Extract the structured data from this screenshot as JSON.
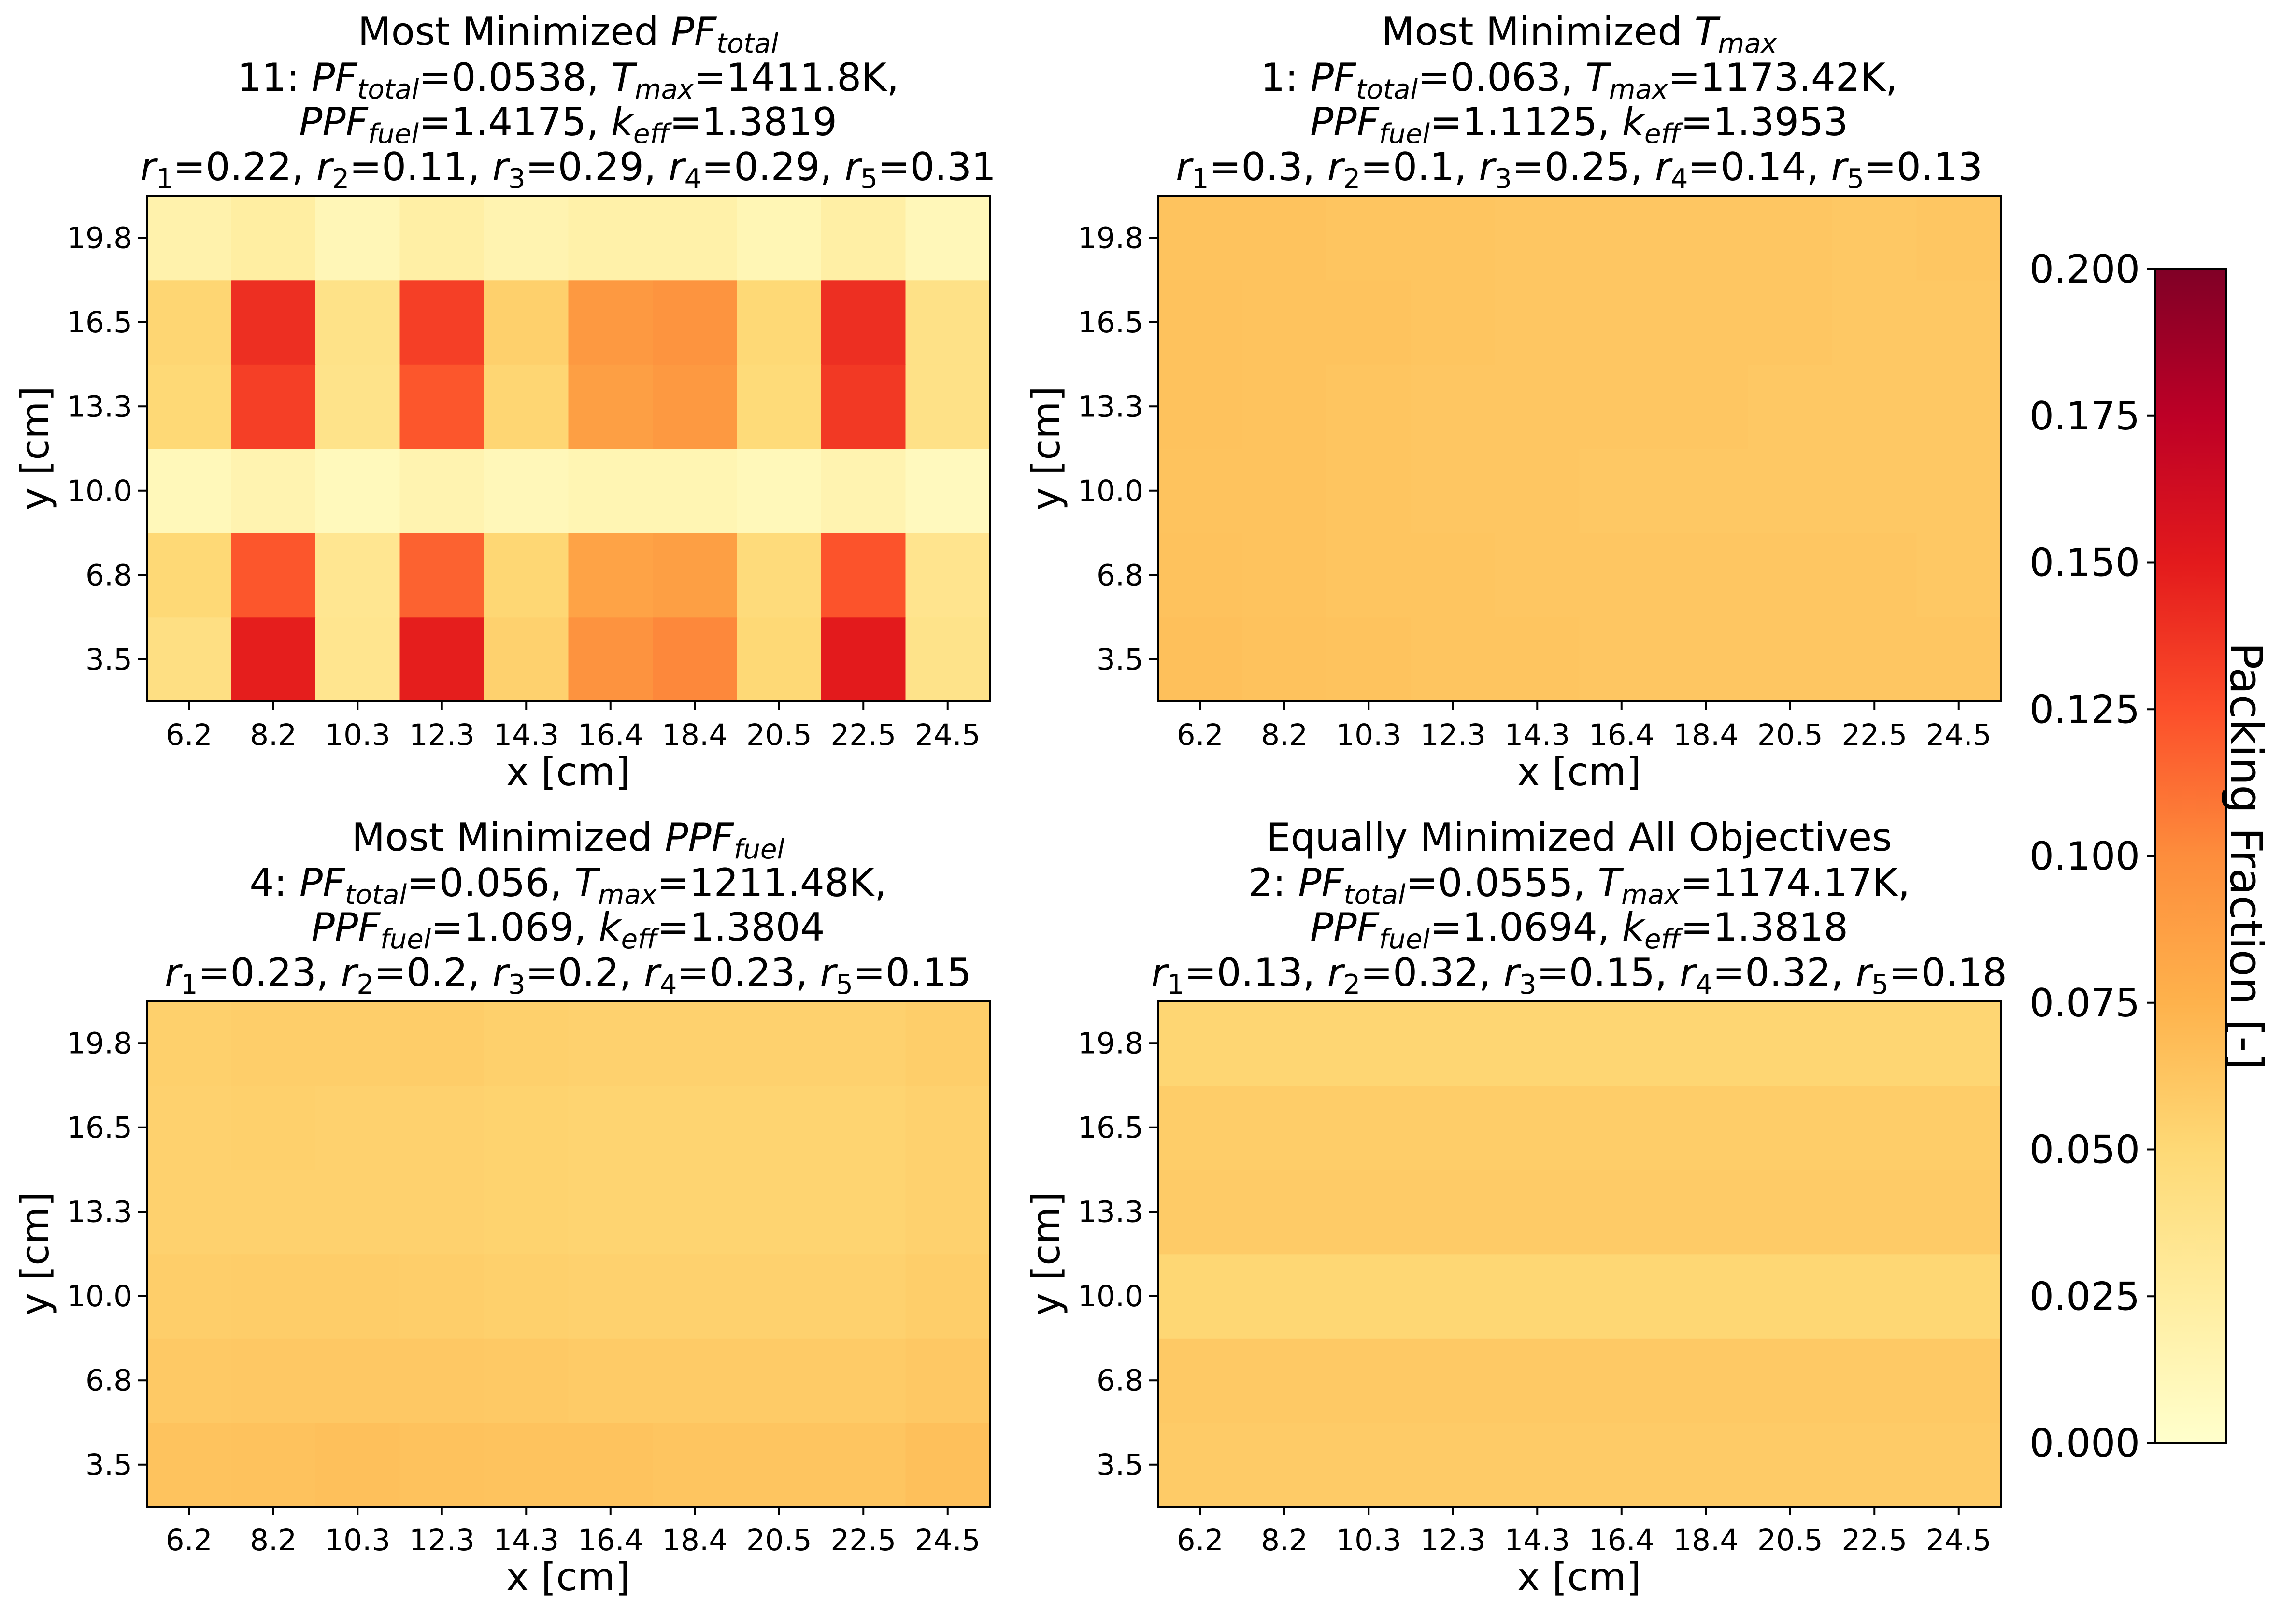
{
  "chart_data": [
    {
      "type": "heatmap",
      "title": "Most Minimized PF_total",
      "info_lines": [
        "11: PF_total=0.0538, T_max=1411.8K,",
        "PPF_fuel=1.4175, k_eff=1.3819",
        "r1=0.22, r2=0.11, r3=0.29, r4=0.29, r5=0.31"
      ],
      "xlabel": "x [cm]",
      "ylabel": "y [cm]",
      "x": [
        "6.2",
        "8.2",
        "10.3",
        "12.3",
        "14.3",
        "16.4",
        "18.4",
        "20.5",
        "22.5",
        "24.5"
      ],
      "y": [
        "3.5",
        "6.8",
        "10.0",
        "13.3",
        "16.5",
        "19.8"
      ],
      "values": [
        [
          0.042,
          0.148,
          0.035,
          0.148,
          0.055,
          0.096,
          0.102,
          0.05,
          0.15,
          0.038
        ],
        [
          0.05,
          0.122,
          0.034,
          0.117,
          0.051,
          0.085,
          0.088,
          0.047,
          0.123,
          0.036
        ],
        [
          0.01,
          0.016,
          0.009,
          0.016,
          0.011,
          0.014,
          0.014,
          0.01,
          0.016,
          0.008
        ],
        [
          0.05,
          0.132,
          0.038,
          0.122,
          0.052,
          0.088,
          0.092,
          0.048,
          0.135,
          0.04
        ],
        [
          0.052,
          0.14,
          0.039,
          0.132,
          0.056,
          0.092,
          0.095,
          0.05,
          0.14,
          0.04
        ],
        [
          0.018,
          0.024,
          0.012,
          0.022,
          0.016,
          0.02,
          0.02,
          0.013,
          0.022,
          0.011
        ]
      ]
    },
    {
      "type": "heatmap",
      "title": "Most Minimized T_max",
      "info_lines": [
        "1: PF_total=0.063, T_max=1173.42K,",
        "PPF_fuel=1.1125, k_eff=1.3953",
        "r1=0.3, r2=0.1, r3=0.25, r4=0.14, r5=0.13"
      ],
      "xlabel": "x [cm]",
      "ylabel": "y [cm]",
      "x": [
        "6.2",
        "8.2",
        "10.3",
        "12.3",
        "14.3",
        "16.4",
        "18.4",
        "20.5",
        "22.5",
        "24.5"
      ],
      "y": [
        "3.5",
        "6.8",
        "10.0",
        "13.3",
        "16.5",
        "19.8"
      ],
      "values": [
        [
          0.066,
          0.065,
          0.064,
          0.063,
          0.063,
          0.062,
          0.062,
          0.062,
          0.062,
          0.062
        ],
        [
          0.065,
          0.064,
          0.063,
          0.063,
          0.062,
          0.062,
          0.062,
          0.062,
          0.062,
          0.061
        ],
        [
          0.064,
          0.064,
          0.063,
          0.062,
          0.062,
          0.061,
          0.061,
          0.061,
          0.061,
          0.061
        ],
        [
          0.065,
          0.064,
          0.063,
          0.062,
          0.062,
          0.062,
          0.062,
          0.061,
          0.061,
          0.061
        ],
        [
          0.065,
          0.064,
          0.064,
          0.063,
          0.062,
          0.062,
          0.062,
          0.062,
          0.061,
          0.061
        ],
        [
          0.064,
          0.064,
          0.063,
          0.063,
          0.062,
          0.062,
          0.062,
          0.062,
          0.061,
          0.062
        ]
      ]
    },
    {
      "type": "heatmap",
      "title": "Most Minimized PPF_fuel",
      "info_lines": [
        "4: PF_total=0.056, T_max=1211.48K,",
        "PPF_fuel=1.069, k_eff=1.3804",
        "r1=0.23, r2=0.2, r3=0.2, r4=0.23, r5=0.15"
      ],
      "xlabel": "x [cm]",
      "ylabel": "y [cm]",
      "x": [
        "6.2",
        "8.2",
        "10.3",
        "12.3",
        "14.3",
        "16.4",
        "18.4",
        "20.5",
        "22.5",
        "24.5"
      ],
      "y": [
        "3.5",
        "6.8",
        "10.0",
        "13.3",
        "16.5",
        "19.8"
      ],
      "values": [
        [
          0.064,
          0.065,
          0.066,
          0.065,
          0.064,
          0.064,
          0.063,
          0.063,
          0.063,
          0.066
        ],
        [
          0.06,
          0.061,
          0.061,
          0.061,
          0.06,
          0.059,
          0.059,
          0.059,
          0.059,
          0.061
        ],
        [
          0.057,
          0.058,
          0.058,
          0.057,
          0.056,
          0.055,
          0.055,
          0.055,
          0.055,
          0.057
        ],
        [
          0.055,
          0.055,
          0.055,
          0.055,
          0.054,
          0.053,
          0.053,
          0.053,
          0.053,
          0.055
        ],
        [
          0.055,
          0.056,
          0.055,
          0.055,
          0.054,
          0.053,
          0.053,
          0.053,
          0.053,
          0.055
        ],
        [
          0.056,
          0.057,
          0.057,
          0.058,
          0.056,
          0.055,
          0.055,
          0.055,
          0.055,
          0.057
        ]
      ]
    },
    {
      "type": "heatmap",
      "title": "Equally Minimized All Objectives",
      "info_lines": [
        "2: PF_total=0.0555, T_max=1174.17K,",
        "PPF_fuel=1.0694, k_eff=1.3818",
        "r1=0.13, r2=0.32, r3=0.15, r4=0.32, r5=0.18"
      ],
      "xlabel": "x [cm]",
      "ylabel": "y [cm]",
      "x": [
        "6.2",
        "8.2",
        "10.3",
        "12.3",
        "14.3",
        "16.4",
        "18.4",
        "20.5",
        "22.5",
        "24.5"
      ],
      "y": [
        "3.5",
        "6.8",
        "10.0",
        "13.3",
        "16.5",
        "19.8"
      ],
      "values": [
        [
          0.059,
          0.059,
          0.059,
          0.059,
          0.059,
          0.059,
          0.059,
          0.059,
          0.059,
          0.059
        ],
        [
          0.06,
          0.06,
          0.06,
          0.06,
          0.06,
          0.06,
          0.06,
          0.06,
          0.06,
          0.06
        ],
        [
          0.051,
          0.051,
          0.051,
          0.051,
          0.051,
          0.051,
          0.051,
          0.051,
          0.051,
          0.051
        ],
        [
          0.059,
          0.059,
          0.059,
          0.059,
          0.059,
          0.059,
          0.059,
          0.059,
          0.059,
          0.059
        ],
        [
          0.058,
          0.058,
          0.058,
          0.058,
          0.058,
          0.058,
          0.058,
          0.058,
          0.058,
          0.058
        ],
        [
          0.052,
          0.052,
          0.052,
          0.052,
          0.052,
          0.052,
          0.052,
          0.052,
          0.052,
          0.052
        ]
      ]
    }
  ],
  "colorbar": {
    "label": "Packing Fraction [-]",
    "colormap": "YlOrRd",
    "range": [
      0,
      0.2
    ],
    "ticks": [
      "0.000",
      "0.025",
      "0.050",
      "0.075",
      "0.100",
      "0.125",
      "0.150",
      "0.175",
      "0.200"
    ]
  }
}
